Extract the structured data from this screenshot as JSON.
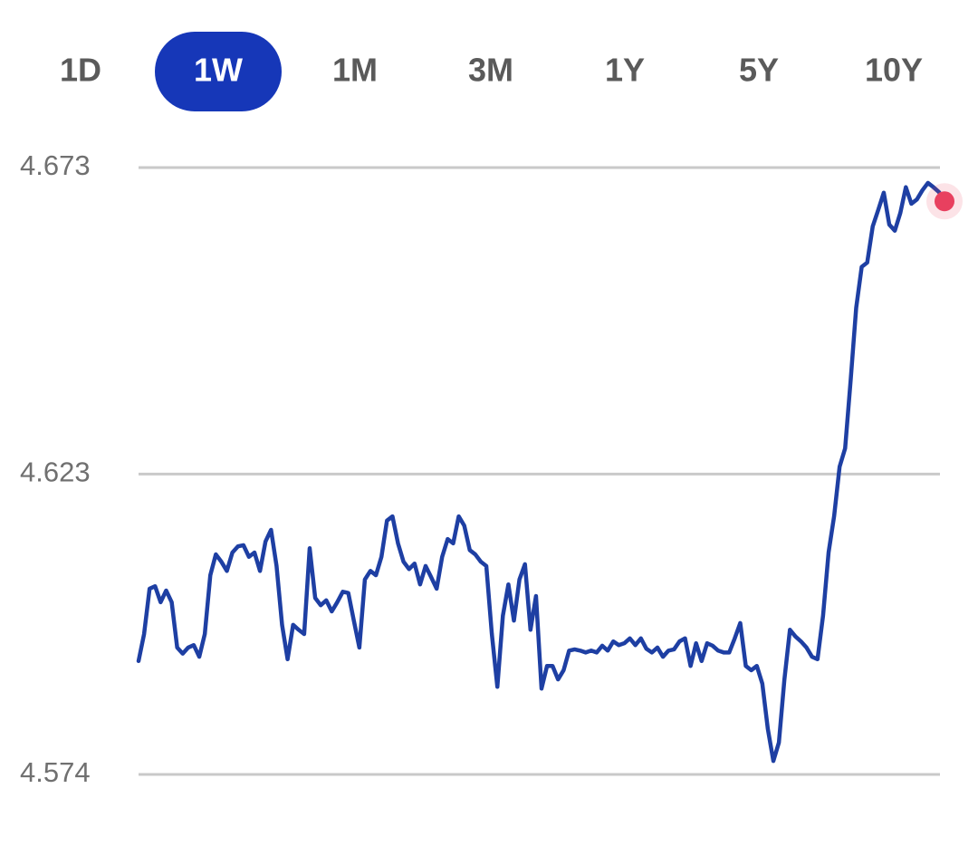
{
  "tabs": [
    "1D",
    "1W",
    "1M",
    "3M",
    "1Y",
    "5Y",
    "10Y"
  ],
  "selected_tab": 1,
  "chart_data": {
    "type": "line",
    "values": [
      4.5925,
      4.5969,
      4.6043,
      4.6047,
      4.6021,
      4.604,
      4.6021,
      4.5947,
      4.5937,
      4.5947,
      4.5951,
      4.5932,
      4.5969,
      4.6065,
      4.6099,
      4.6087,
      4.6072,
      4.6102,
      4.6112,
      4.6114,
      4.6095,
      4.6102,
      4.6072,
      4.612,
      4.6139,
      4.608,
      4.5984,
      4.5928,
      4.5984,
      4.5976,
      4.5969,
      4.6109,
      4.6028,
      4.6016,
      4.6024,
      4.6006,
      4.6021,
      4.6038,
      4.6036,
      4.5991,
      4.5947,
      4.6058,
      4.6072,
      4.6065,
      4.6095,
      4.6154,
      4.6161,
      4.6117,
      4.6087,
      4.6075,
      4.6084,
      4.605,
      4.608,
      4.6062,
      4.6043,
      4.6095,
      4.6124,
      4.6117,
      4.6161,
      4.6146,
      4.6106,
      4.6099,
      4.6087,
      4.608,
      4.5969,
      4.5883,
      4.5999,
      4.605,
      4.5991,
      4.6058,
      4.6083,
      4.5976,
      4.6031,
      4.588,
      4.5917,
      4.5917,
      4.5895,
      4.591,
      4.5942,
      4.5944,
      4.5942,
      4.5939,
      4.5942,
      4.5939,
      4.595,
      4.5942,
      4.5957,
      4.5951,
      4.5954,
      4.5962,
      4.5951,
      4.5962,
      4.5945,
      4.5939,
      4.5947,
      4.5932,
      4.5942,
      4.5944,
      4.5957,
      4.5962,
      4.5917,
      4.5954,
      4.5925,
      4.5954,
      4.595,
      4.5942,
      4.5939,
      4.5939,
      4.5962,
      4.5987,
      4.5917,
      4.591,
      4.5917,
      4.5888,
      4.5814,
      4.5762,
      4.5792,
      4.5895,
      4.5976,
      4.5965,
      4.5957,
      4.5947,
      4.5932,
      4.5928,
      4.5999,
      4.6102,
      4.6161,
      4.6242,
      4.6272,
      4.6383,
      4.6501,
      4.6568,
      4.6575,
      4.6634,
      4.6661,
      4.6689,
      4.6637,
      4.6627,
      4.6656,
      4.6698,
      4.6671,
      4.6678,
      4.6693,
      4.6705,
      4.6698,
      4.669,
      4.6675
    ],
    "color": "#1e3fa3",
    "marker_color": "#e8405f",
    "ylim": [
      4.574,
      4.673
    ],
    "yticks": [
      4.574,
      4.623,
      4.673
    ],
    "grid": true
  }
}
